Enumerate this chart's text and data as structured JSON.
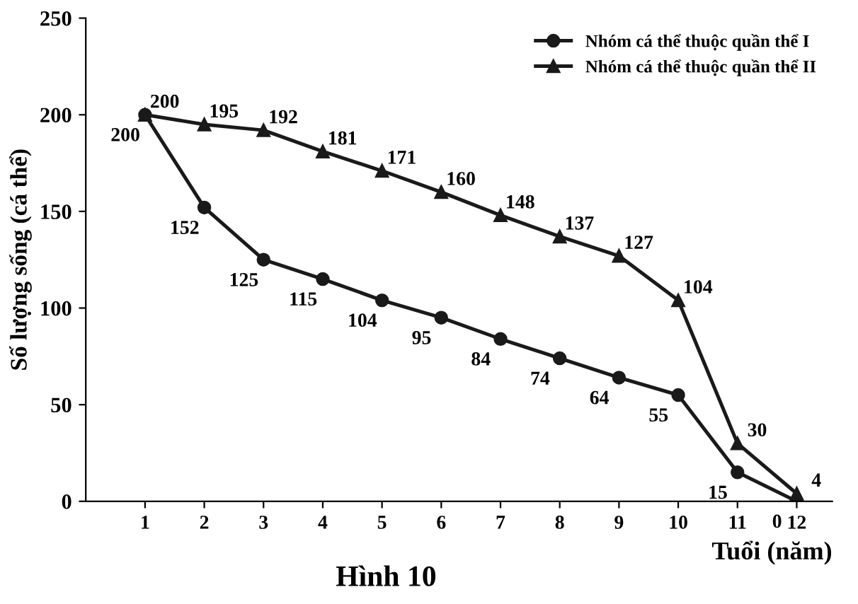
{
  "chart_data": {
    "type": "line",
    "title": "Hình 10",
    "xlabel": "Tuổi (năm)",
    "ylabel": "Số lượng sống (cá thể)",
    "x": [
      1,
      2,
      3,
      4,
      5,
      6,
      7,
      8,
      9,
      10,
      11,
      12
    ],
    "series": [
      {
        "name": "Nhóm cá thể thuộc quần thể I",
        "color": "#1a1a1a",
        "marker": "circle",
        "values": [
          200,
          152,
          125,
          115,
          104,
          95,
          84,
          74,
          64,
          55,
          15,
          0
        ]
      },
      {
        "name": "Nhóm cá thể thuộc quần thể II",
        "color": "#1a1a1a",
        "marker": "triangle",
        "values": [
          200,
          195,
          192,
          181,
          171,
          160,
          148,
          137,
          127,
          104,
          30,
          4
        ]
      }
    ],
    "xlim": [
      0,
      12.6
    ],
    "xticks": [
      1,
      2,
      3,
      4,
      5,
      6,
      7,
      8,
      9,
      10,
      11,
      12
    ],
    "ylim": [
      0,
      250
    ],
    "yticks": [
      0,
      50,
      100,
      150,
      200,
      250
    ],
    "grid": false,
    "legend": "top right",
    "data_labels": true,
    "line_style": "solid"
  }
}
